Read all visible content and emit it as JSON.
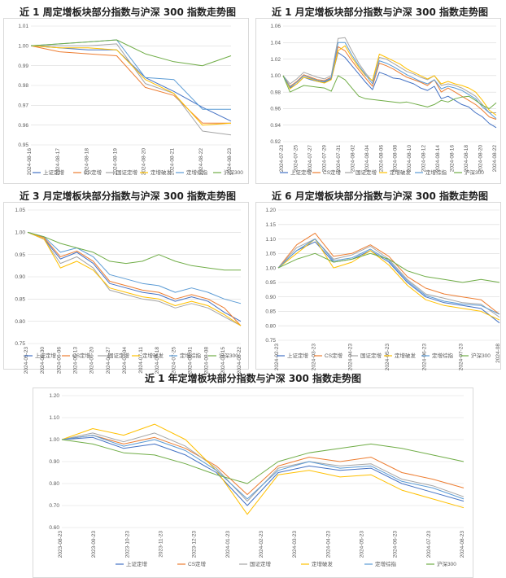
{
  "panels": [
    {
      "title": "近 1 周定增板块部分指数与沪深 300 指数走势图"
    },
    {
      "title": "近 1 月定增板块部分指数与沪深 300 指数走势图"
    },
    {
      "title": "近 3 月定增板块部分指数与沪深 300 指数走势图"
    },
    {
      "title": "近 6 月定增板块部分指数与沪深 300 指数走势图"
    },
    {
      "title": "近 1 年定增板块部分指数与沪深 300 指数走势图"
    }
  ],
  "series_colors": [
    "#4472C4",
    "#ED7D31",
    "#A5A5A5",
    "#FFC000",
    "#5B9BD5",
    "#70AD47"
  ],
  "chart_data": [
    {
      "type": "line",
      "title": "近 1 周定增板块部分指数与沪深 300 指数走势图",
      "x": [
        "2024-08-16",
        "2024-08-17",
        "2024-08-18",
        "2024-08-19",
        "2024-08-20",
        "2024-08-21",
        "2024-08-22",
        "2024-08-23"
      ],
      "ylim": [
        0.95,
        1.01
      ],
      "yticks": [
        0.95,
        0.96,
        0.97,
        0.98,
        0.99,
        1.0,
        1.01
      ],
      "ytick_labels": [
        "0.95",
        "0.96",
        "0.97",
        "0.98",
        "0.99",
        "1.00",
        "1.01"
      ],
      "xtick_labels": [
        "2024-08-16",
        "2024-08-17",
        "2024-08-18",
        "2024-08-19",
        "2024-08-20",
        "2024-08-21",
        "2024-08-22",
        "2024-08-23"
      ],
      "series": [
        {
          "name": "上证定增",
          "values": [
            1.0,
            0.999,
            0.998,
            0.998,
            0.984,
            0.977,
            0.969,
            0.962
          ]
        },
        {
          "name": "CS定增",
          "values": [
            1.0,
            0.997,
            0.996,
            0.995,
            0.979,
            0.975,
            0.961,
            0.961
          ]
        },
        {
          "name": "国证定增",
          "values": [
            1.0,
            1.0,
            1.0,
            1.001,
            0.981,
            0.976,
            0.957,
            0.955
          ]
        },
        {
          "name": "定增破发",
          "values": [
            1.0,
            0.999,
            0.999,
            0.998,
            0.983,
            0.976,
            0.96,
            0.961
          ]
        },
        {
          "name": "定增综指",
          "values": [
            1.0,
            1.001,
            1.002,
            1.003,
            0.984,
            0.983,
            0.968,
            0.968
          ]
        },
        {
          "name": "沪深300",
          "values": [
            1.0,
            1.001,
            1.002,
            1.003,
            0.996,
            0.992,
            0.99,
            0.995
          ]
        }
      ]
    },
    {
      "type": "line",
      "title": "近 1 月定增板块部分指数与沪深 300 指数走势图",
      "x": [
        "2024-07-23",
        "2024-07-24",
        "2024-07-25",
        "2024-07-26",
        "2024-07-27",
        "2024-07-28",
        "2024-07-29",
        "2024-07-30",
        "2024-07-31",
        "2024-08-01",
        "2024-08-02",
        "2024-08-03",
        "2024-08-04",
        "2024-08-05",
        "2024-08-06",
        "2024-08-07",
        "2024-08-08",
        "2024-08-09",
        "2024-08-10",
        "2024-08-11",
        "2024-08-12",
        "2024-08-13",
        "2024-08-14",
        "2024-08-15",
        "2024-08-16",
        "2024-08-17",
        "2024-08-18",
        "2024-08-19",
        "2024-08-20",
        "2024-08-21",
        "2024-08-22",
        "2024-08-23"
      ],
      "ylim": [
        0.92,
        1.06
      ],
      "yticks": [
        0.92,
        0.94,
        0.96,
        0.98,
        1.0,
        1.02,
        1.04,
        1.06
      ],
      "ytick_labels": [
        "0.92",
        "0.94",
        "0.96",
        "0.98",
        "1.00",
        "1.02",
        "1.04",
        "1.06"
      ],
      "xtick_labels": [
        "2024-07-23",
        "2024-07-25",
        "2024-07-27",
        "2024-07-29",
        "2024-07-31",
        "2024-08-02",
        "2024-08-04",
        "2024-08-06",
        "2024-08-08",
        "2024-08-10",
        "2024-08-12",
        "2024-08-14",
        "2024-08-16",
        "2024-08-18",
        "2024-08-20",
        "2024-08-22"
      ],
      "series": [
        {
          "name": "上证定增",
          "values": [
            1.0,
            0.985,
            0.99,
            0.998,
            0.995,
            0.993,
            0.992,
            0.996,
            1.028,
            1.022,
            1.012,
            1.002,
            0.992,
            0.983,
            1.004,
            1.001,
            0.997,
            0.996,
            0.993,
            0.99,
            0.985,
            0.982,
            0.987,
            0.972,
            0.975,
            0.97,
            0.965,
            0.962,
            0.955,
            0.95,
            0.942,
            0.937
          ]
        },
        {
          "name": "CS定增",
          "values": [
            1.0,
            0.987,
            0.993,
            1.001,
            0.998,
            0.995,
            0.994,
            0.998,
            1.035,
            1.03,
            1.018,
            1.007,
            0.997,
            0.987,
            1.015,
            1.012,
            1.008,
            1.003,
            0.998,
            0.995,
            0.992,
            0.988,
            0.995,
            0.98,
            0.985,
            0.98,
            0.975,
            0.97,
            0.965,
            0.958,
            0.95,
            0.947
          ]
        },
        {
          "name": "国证定增",
          "values": [
            1.0,
            0.99,
            0.996,
            1.004,
            1.001,
            0.998,
            0.996,
            1.0,
            1.045,
            1.046,
            1.03,
            1.015,
            1.003,
            0.993,
            1.022,
            1.02,
            1.015,
            1.01,
            1.005,
            1.002,
            0.998,
            0.995,
            1.0,
            0.988,
            0.99,
            0.988,
            0.985,
            0.98,
            0.975,
            0.965,
            0.955,
            0.955
          ]
        },
        {
          "name": "定增破发",
          "values": [
            1.0,
            0.984,
            0.99,
            0.998,
            0.996,
            0.993,
            0.991,
            0.995,
            1.03,
            1.036,
            1.022,
            1.01,
            1.0,
            0.994,
            1.026,
            1.022,
            1.018,
            1.014,
            1.008,
            1.004,
            1.0,
            0.996,
            1.0,
            0.99,
            0.993,
            0.99,
            0.988,
            0.985,
            0.98,
            0.97,
            0.958,
            0.952
          ]
        },
        {
          "name": "定增综指",
          "values": [
            1.0,
            0.986,
            0.992,
            1.0,
            0.997,
            0.994,
            0.993,
            0.997,
            1.04,
            1.04,
            1.025,
            1.012,
            1.001,
            0.99,
            1.018,
            1.015,
            1.011,
            1.006,
            1.001,
            0.997,
            0.993,
            0.99,
            0.995,
            0.984,
            0.987,
            0.985,
            0.982,
            0.977,
            0.972,
            0.962,
            0.955,
            0.948
          ]
        },
        {
          "name": "沪深300",
          "values": [
            1.0,
            0.98,
            0.984,
            0.988,
            0.987,
            0.986,
            0.985,
            0.981,
            1.0,
            0.995,
            0.985,
            0.975,
            0.972,
            0.971,
            0.97,
            0.969,
            0.968,
            0.967,
            0.968,
            0.966,
            0.964,
            0.962,
            0.965,
            0.97,
            0.968,
            0.972,
            0.974,
            0.975,
            0.97,
            0.964,
            0.96,
            0.967
          ]
        }
      ]
    },
    {
      "type": "line",
      "title": "近 3 月定增板块部分指数与沪深 300 指数走势图",
      "x": [
        "2024-05-23",
        "2024-05-30",
        "2024-06-06",
        "2024-06-13",
        "2024-06-20",
        "2024-06-27",
        "2024-07-04",
        "2024-07-11",
        "2024-07-18",
        "2024-07-25",
        "2024-08-01",
        "2024-08-08",
        "2024-08-15",
        "2024-08-22"
      ],
      "ylim": [
        0.75,
        1.05
      ],
      "yticks": [
        0.75,
        0.8,
        0.85,
        0.9,
        0.95,
        1.0,
        1.05
      ],
      "ytick_labels": [
        "0.75",
        "0.80",
        "0.85",
        "0.90",
        "0.95",
        "1.00",
        "1.05"
      ],
      "xtick_labels": [
        "2024-05-23",
        "2024-05-30",
        "2024-06-06",
        "2024-06-13",
        "2024-06-20",
        "2024-06-27",
        "2024-07-04",
        "2024-07-11",
        "2024-07-18",
        "2024-07-25",
        "2024-08-01",
        "2024-08-08",
        "2024-08-15",
        "2024-08-22"
      ],
      "series": [
        {
          "name": "上证定增",
          "values": [
            1.0,
            0.985,
            0.94,
            0.955,
            0.93,
            0.885,
            0.875,
            0.865,
            0.86,
            0.845,
            0.855,
            0.845,
            0.82,
            0.8
          ]
        },
        {
          "name": "CS定增",
          "values": [
            1.0,
            0.988,
            0.945,
            0.958,
            0.935,
            0.89,
            0.88,
            0.87,
            0.865,
            0.85,
            0.86,
            0.85,
            0.83,
            0.79
          ]
        },
        {
          "name": "国证定增",
          "values": [
            1.0,
            0.984,
            0.93,
            0.945,
            0.92,
            0.87,
            0.86,
            0.85,
            0.845,
            0.83,
            0.84,
            0.83,
            0.81,
            0.79
          ]
        },
        {
          "name": "定增破发",
          "values": [
            1.0,
            0.985,
            0.92,
            0.935,
            0.915,
            0.875,
            0.865,
            0.855,
            0.85,
            0.835,
            0.845,
            0.835,
            0.815,
            0.79
          ]
        },
        {
          "name": "定增综指",
          "values": [
            1.0,
            0.99,
            0.955,
            0.965,
            0.945,
            0.905,
            0.895,
            0.885,
            0.88,
            0.865,
            0.875,
            0.865,
            0.85,
            0.84
          ]
        },
        {
          "name": "沪深300",
          "values": [
            1.0,
            0.99,
            0.975,
            0.965,
            0.955,
            0.935,
            0.93,
            0.935,
            0.95,
            0.935,
            0.925,
            0.92,
            0.915,
            0.915
          ]
        }
      ]
    },
    {
      "type": "line",
      "title": "近 6 月定增板块部分指数与沪深 300 指数走势图",
      "x": [
        "2024-02-23",
        "2024-03-08",
        "2024-03-23",
        "2024-04-08",
        "2024-04-23",
        "2024-05-08",
        "2024-05-23",
        "2024-06-08",
        "2024-06-23",
        "2024-07-08",
        "2024-07-23",
        "2024-08-08",
        "2024-08-23"
      ],
      "ylim": [
        0.75,
        1.2
      ],
      "yticks": [
        0.75,
        0.8,
        0.85,
        0.9,
        0.95,
        1.0,
        1.05,
        1.1,
        1.15,
        1.2
      ],
      "ytick_labels": [
        "0.75",
        "0.80",
        "0.85",
        "0.90",
        "0.95",
        "1.00",
        "1.05",
        "1.10",
        "1.15",
        "1.20"
      ],
      "xtick_labels": [
        "2024-02-23",
        "2024-03-23",
        "2024-04-23",
        "2024-05-23",
        "2024-06-23",
        "2024-07-23",
        "2024-08"
      ],
      "series": [
        {
          "name": "上证定增",
          "values": [
            1.0,
            1.06,
            1.09,
            1.02,
            1.03,
            1.06,
            1.02,
            0.95,
            0.9,
            0.88,
            0.87,
            0.86,
            0.81
          ]
        },
        {
          "name": "CS定增",
          "values": [
            1.0,
            1.08,
            1.12,
            1.04,
            1.05,
            1.08,
            1.04,
            0.97,
            0.93,
            0.91,
            0.9,
            0.89,
            0.84
          ]
        },
        {
          "name": "国证定增",
          "values": [
            1.0,
            1.07,
            1.1,
            1.03,
            1.045,
            1.075,
            1.03,
            0.96,
            0.91,
            0.895,
            0.88,
            0.875,
            0.83
          ]
        },
        {
          "name": "定增破发",
          "values": [
            1.0,
            1.05,
            1.1,
            1.0,
            1.02,
            1.06,
            1.01,
            0.94,
            0.89,
            0.87,
            0.86,
            0.85,
            0.82
          ]
        },
        {
          "name": "定增综指",
          "values": [
            1.0,
            1.06,
            1.1,
            1.025,
            1.035,
            1.065,
            1.025,
            0.955,
            0.905,
            0.885,
            0.875,
            0.87,
            0.84
          ]
        },
        {
          "name": "沪深300",
          "values": [
            1.0,
            1.03,
            1.05,
            1.02,
            1.03,
            1.05,
            1.03,
            0.99,
            0.97,
            0.96,
            0.95,
            0.96,
            0.95
          ]
        }
      ]
    },
    {
      "type": "line",
      "title": "近 1 年定增板块部分指数与沪深 300 指数走势图",
      "x": [
        "2023-08-23",
        "2023-09-23",
        "2023-10-23",
        "2023-11-23",
        "2023-12-23",
        "2024-01-23",
        "2024-02-08",
        "2024-02-23",
        "2024-03-23",
        "2024-04-23",
        "2024-05-23",
        "2024-06-23",
        "2024-07-23",
        "2024-08-23"
      ],
      "ylim": [
        0.6,
        1.2
      ],
      "yticks": [
        0.6,
        0.7,
        0.8,
        0.9,
        1.0,
        1.1,
        1.2
      ],
      "ytick_labels": [
        "0.60",
        "0.70",
        "0.80",
        "0.90",
        "1.00",
        "1.10",
        "1.20"
      ],
      "xtick_labels": [
        "2023-08-23",
        "2023-09-23",
        "2023-10-23",
        "2023-11-23",
        "2023-12-23",
        "2024-01-23",
        "2024-02-23",
        "2024-03-23",
        "2024-04-23",
        "2024-05-23",
        "2024-06-23",
        "2024-07-23",
        "2024-08-23"
      ],
      "series": [
        {
          "name": "上证定增",
          "values": [
            1.0,
            1.01,
            0.96,
            0.98,
            0.93,
            0.85,
            0.7,
            0.85,
            0.88,
            0.86,
            0.87,
            0.8,
            0.76,
            0.72
          ]
        },
        {
          "name": "CS定增",
          "values": [
            1.0,
            1.02,
            0.98,
            1.01,
            0.96,
            0.88,
            0.75,
            0.88,
            0.92,
            0.9,
            0.92,
            0.85,
            0.82,
            0.78
          ]
        },
        {
          "name": "国证定增",
          "values": [
            1.0,
            1.03,
            0.99,
            1.03,
            0.97,
            0.87,
            0.72,
            0.87,
            0.9,
            0.88,
            0.89,
            0.82,
            0.79,
            0.74
          ]
        },
        {
          "name": "定增破发",
          "values": [
            1.0,
            1.05,
            1.02,
            1.07,
            1.0,
            0.86,
            0.66,
            0.84,
            0.86,
            0.83,
            0.84,
            0.77,
            0.73,
            0.69
          ]
        },
        {
          "name": "定增综指",
          "values": [
            1.0,
            1.02,
            0.97,
            1.0,
            0.95,
            0.86,
            0.73,
            0.86,
            0.9,
            0.87,
            0.88,
            0.81,
            0.78,
            0.73
          ]
        },
        {
          "name": "沪深300",
          "values": [
            1.0,
            0.98,
            0.94,
            0.93,
            0.89,
            0.84,
            0.8,
            0.9,
            0.94,
            0.96,
            0.98,
            0.96,
            0.93,
            0.9
          ]
        }
      ]
    }
  ]
}
